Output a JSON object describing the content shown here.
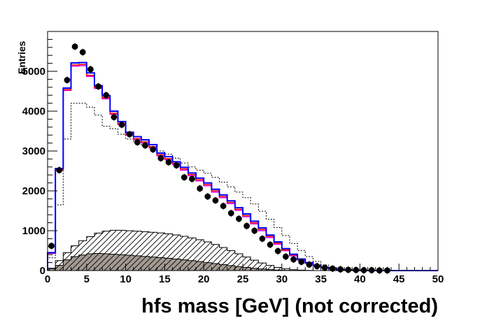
{
  "chart_data": {
    "type": "histogram",
    "title": "",
    "xlabel": "hfs mass [GeV] (not corrected)",
    "ylabel": "Entries",
    "xlim": [
      0,
      50
    ],
    "ylim": [
      0,
      6000
    ],
    "bin_width": 1,
    "x_ticks": [
      0,
      5,
      10,
      15,
      20,
      25,
      30,
      35,
      40,
      45,
      50
    ],
    "y_ticks": [
      0,
      1000,
      2000,
      3000,
      4000,
      5000
    ],
    "y_tick_labels": [
      "0",
      "1000",
      "2000",
      "3000",
      "4000",
      "5000"
    ],
    "grid": false,
    "legend": "none",
    "series": [
      {
        "style": "filled-gray-histogram",
        "color": "#a39b93",
        "values": [
          50,
          130,
          270,
          350,
          390,
          420,
          430,
          420,
          410,
          400,
          385,
          370,
          355,
          340,
          325,
          310,
          290,
          270,
          250,
          225,
          200,
          175,
          150,
          125,
          100,
          78,
          58,
          40,
          25,
          14,
          7,
          3,
          1,
          0,
          0,
          0,
          0,
          0,
          0,
          0,
          0,
          0,
          0,
          0,
          0,
          0,
          0,
          0,
          0,
          0
        ]
      },
      {
        "style": "hatched-histogram",
        "color": "#000000",
        "values": [
          60,
          250,
          450,
          620,
          750,
          850,
          940,
          990,
          1010,
          1010,
          1000,
          990,
          975,
          960,
          945,
          920,
          895,
          860,
          820,
          775,
          720,
          655,
          580,
          500,
          420,
          340,
          260,
          190,
          130,
          80,
          45,
          22,
          10,
          4,
          1,
          0,
          0,
          0,
          0,
          0,
          0,
          0,
          0,
          0,
          0,
          0,
          0,
          0,
          0,
          0
        ]
      },
      {
        "style": "dotted-histogram",
        "color": "#000000",
        "values": [
          320,
          1650,
          3300,
          4200,
          4200,
          4100,
          3900,
          3620,
          3560,
          3420,
          3300,
          3220,
          3150,
          3080,
          3000,
          2920,
          2820,
          2700,
          2600,
          2520,
          2440,
          2340,
          2220,
          2100,
          1970,
          1830,
          1670,
          1490,
          1290,
          1080,
          880,
          680,
          500,
          350,
          230,
          140,
          80,
          40,
          20,
          10,
          5,
          2,
          1,
          0,
          0,
          0,
          0,
          0,
          0,
          0
        ]
      },
      {
        "style": "magenta-histogram",
        "color": "#e000e0",
        "values": [
          430,
          2520,
          4520,
          5130,
          5140,
          4870,
          4570,
          4310,
          3920,
          3660,
          3400,
          3280,
          3200,
          3080,
          2880,
          2780,
          2660,
          2520,
          2380,
          2250,
          2130,
          1970,
          1830,
          1680,
          1510,
          1350,
          1170,
          1000,
          830,
          660,
          500,
          370,
          260,
          180,
          110,
          70,
          40,
          20,
          10,
          5,
          2,
          0,
          0,
          0,
          0,
          0,
          0,
          0,
          0,
          0
        ]
      },
      {
        "style": "red-histogram",
        "color": "#ff0000",
        "values": [
          440,
          2530,
          4540,
          5160,
          5170,
          4900,
          4600,
          4340,
          3950,
          3690,
          3430,
          3310,
          3230,
          3110,
          2910,
          2810,
          2690,
          2550,
          2410,
          2280,
          2160,
          2000,
          1860,
          1710,
          1540,
          1380,
          1200,
          1030,
          860,
          690,
          520,
          390,
          280,
          190,
          120,
          75,
          45,
          22,
          11,
          5,
          2,
          0,
          0,
          0,
          0,
          0,
          0,
          0,
          0,
          0
        ]
      },
      {
        "style": "blue-histogram",
        "color": "#0000ff",
        "values": [
          450,
          2560,
          4580,
          5210,
          5220,
          4960,
          4640,
          4390,
          4000,
          3740,
          3470,
          3360,
          3280,
          3160,
          2950,
          2860,
          2730,
          2590,
          2450,
          2320,
          2200,
          2040,
          1900,
          1750,
          1580,
          1420,
          1240,
          1070,
          890,
          720,
          550,
          410,
          290,
          200,
          130,
          80,
          48,
          25,
          12,
          6,
          3,
          1,
          0,
          0,
          0,
          0,
          0,
          0,
          0,
          0
        ]
      },
      {
        "style": "data-points",
        "color": "#000000",
        "x": [
          0.5,
          1.5,
          2.5,
          3.5,
          4.5,
          5.5,
          6.5,
          7.5,
          8.5,
          9.5,
          10.5,
          11.5,
          12.5,
          13.5,
          14.5,
          15.5,
          16.5,
          17.5,
          18.5,
          19.5,
          20.5,
          21.5,
          22.5,
          23.5,
          24.5,
          25.5,
          26.5,
          27.5,
          28.5,
          29.5,
          30.5,
          31.5,
          32.5,
          33.5,
          34.5,
          35.5,
          36.5,
          37.5,
          38.5,
          39.5,
          40.5,
          41.5,
          42.5,
          43.5
        ],
        "y": [
          620,
          2520,
          4780,
          5620,
          5480,
          5050,
          4620,
          4400,
          3850,
          3660,
          3420,
          3220,
          3140,
          3040,
          2820,
          2720,
          2640,
          2340,
          2300,
          2060,
          1860,
          1760,
          1620,
          1440,
          1300,
          1120,
          1000,
          800,
          650,
          490,
          350,
          280,
          220,
          150,
          110,
          70,
          50,
          30,
          20,
          15,
          10,
          10,
          5,
          5
        ]
      }
    ]
  }
}
